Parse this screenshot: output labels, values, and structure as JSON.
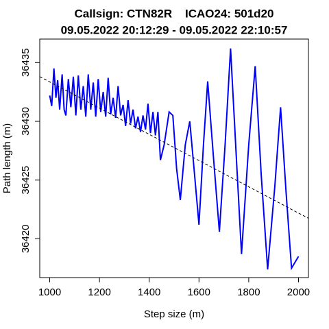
{
  "chart_data": {
    "type": "line",
    "title": "Callsign: CTN82R    ICAO24: 501d20",
    "subtitle": "09.05.2022 20:12:29 - 09.05.2022 22:10:57",
    "x_label": "Step size (m)",
    "y_label": "Path length (m)",
    "color": "#0000ff",
    "x": [
      1000,
      1008,
      1017,
      1025,
      1032,
      1040,
      1050,
      1058,
      1065,
      1075,
      1085,
      1095,
      1105,
      1115,
      1125,
      1135,
      1145,
      1155,
      1165,
      1175,
      1185,
      1195,
      1205,
      1215,
      1225,
      1235,
      1245,
      1255,
      1265,
      1275,
      1285,
      1295,
      1305,
      1315,
      1325,
      1335,
      1345,
      1355,
      1365,
      1375,
      1385,
      1395,
      1405,
      1415,
      1425,
      1435,
      1445,
      1460,
      1480,
      1495,
      1510,
      1525,
      1545,
      1563,
      1580,
      1600,
      1618,
      1635,
      1658,
      1682,
      1705,
      1727,
      1750,
      1771,
      1800,
      1826,
      1850,
      1876,
      1905,
      1928,
      1950,
      1972,
      2000
    ],
    "values": [
      36432.2,
      36431.3,
      36434.5,
      36432.0,
      36433.5,
      36431.0,
      36434.0,
      36431.0,
      36430.5,
      36433.6,
      36431.2,
      36433.8,
      36430.5,
      36433.9,
      36431.0,
      36433.0,
      36430.4,
      36434.0,
      36431.0,
      36433.3,
      36430.4,
      36433.6,
      36430.8,
      36432.5,
      36430.4,
      36433.7,
      36430.6,
      36432.0,
      36430.3,
      36433.0,
      36430.5,
      36431.4,
      36429.6,
      36431.8,
      36429.8,
      36431.0,
      36429.4,
      36430.4,
      36429.1,
      36430.5,
      36429.3,
      36431.5,
      36429.0,
      36430.8,
      36428.8,
      36430.8,
      36426.7,
      36428.0,
      36430.8,
      36430.5,
      36426.0,
      36423.3,
      36428.0,
      36430.0,
      36426.0,
      36421.2,
      36428.0,
      36433.4,
      36427.0,
      36420.6,
      36428.0,
      36436.2,
      36427.0,
      36418.7,
      36428.0,
      36434.7,
      36425.5,
      36417.4,
      36424.5,
      36431.2,
      36424.0,
      36417.5,
      36418.5
    ],
    "trend": {
      "x": [
        960,
        2040
      ],
      "values": [
        36433.8,
        36421.75
      ],
      "color": "#000000"
    },
    "xlim": [
      960,
      2040
    ],
    "xticks": [
      1000,
      1200,
      1400,
      1600,
      1800,
      2000
    ],
    "ylim": [
      36416.7,
      36437.0
    ],
    "yticks": [
      36420,
      36425,
      36430,
      36435
    ]
  }
}
